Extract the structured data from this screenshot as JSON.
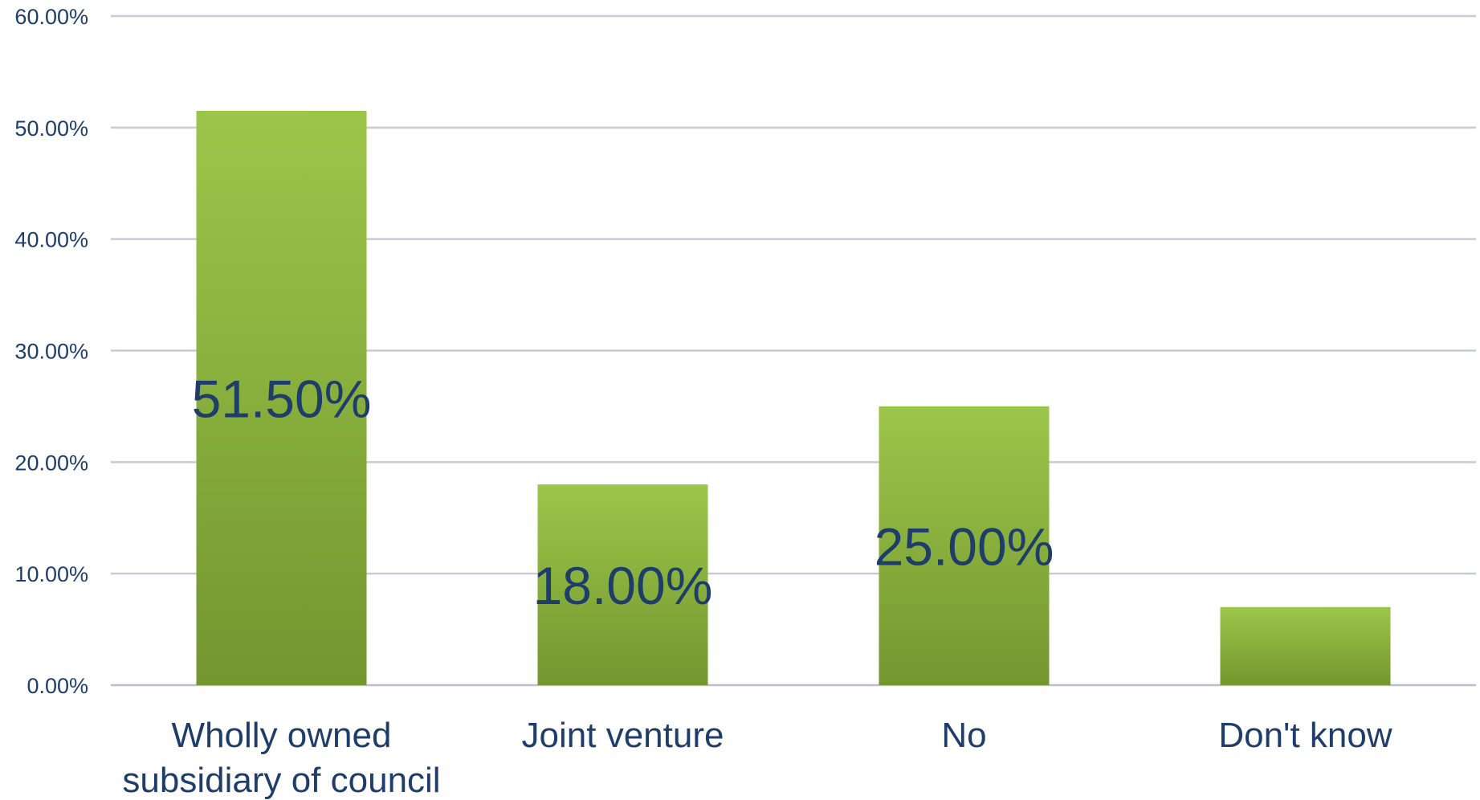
{
  "chart_data": {
    "type": "bar",
    "categories": [
      "Wholly owned subsidiary of council",
      "Joint venture",
      "No",
      "Don't know"
    ],
    "category_lines": [
      [
        "Wholly owned",
        "subsidiary of council"
      ],
      [
        "Joint venture"
      ],
      [
        "No"
      ],
      [
        "Don't know"
      ]
    ],
    "values": [
      51.5,
      18.0,
      25.0,
      7.0
    ],
    "data_labels": [
      "51.50%",
      "18.00%",
      "25.00%",
      ""
    ],
    "ylim": [
      0,
      60
    ],
    "yticks": [
      0,
      10,
      20,
      30,
      40,
      50,
      60
    ],
    "ytick_labels": [
      "0.00%",
      "10.00%",
      "20.00%",
      "30.00%",
      "40.00%",
      "50.00%",
      "60.00%"
    ],
    "title": "",
    "xlabel": "",
    "ylabel": "",
    "grid": true,
    "legend": "none",
    "colors": {
      "bar_top": "#9cc64a",
      "bar_bottom": "#74962f",
      "text": "#1f3d6b",
      "grid": "#c5ccd6"
    }
  }
}
